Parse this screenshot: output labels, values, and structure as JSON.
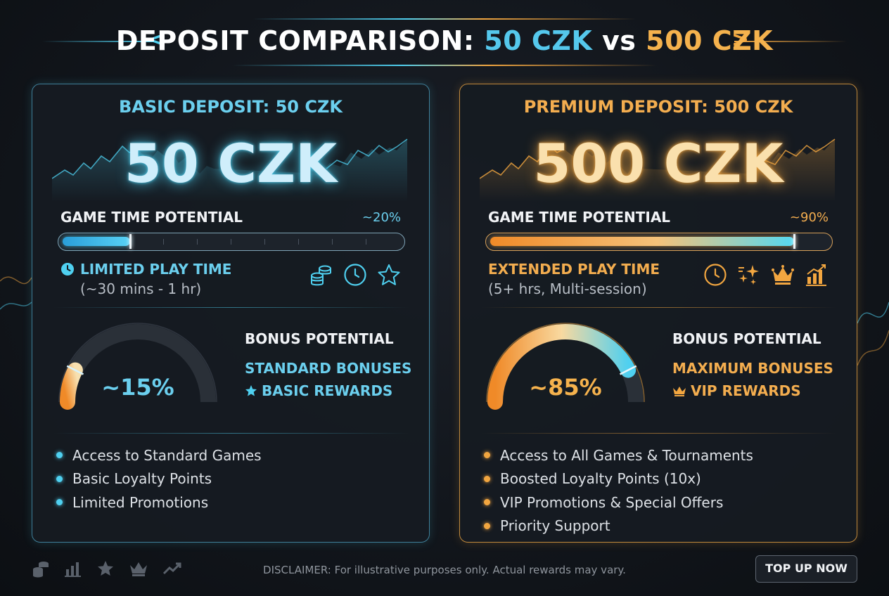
{
  "header": {
    "title_prefix": "DEPOSIT COMPARISON:",
    "title_basic": "50 CZK",
    "title_vs": "vs",
    "title_premium": "500 CZK"
  },
  "colors": {
    "basic_accent": "#4fd0f0",
    "premium_accent": "#f2a640",
    "background": "#12161c"
  },
  "basic": {
    "card_title": "BASIC DEPOSIT: 50 CZK",
    "amount": "50 CZK",
    "game_time_label": "GAME TIME POTENTIAL",
    "game_time_pct": "~20%",
    "game_time_fill": 0.2,
    "play_time_label": "LIMITED PLAY TIME",
    "play_time_sub": "(~30 mins - 1 hr)",
    "play_time_icons": [
      "coins-icon",
      "clock-icon",
      "star-icon"
    ],
    "bonus_gauge_value": "~15%",
    "bonus_gauge_fill": 0.15,
    "bonus_title": "BONUS POTENTIAL",
    "bonus_a": "STANDARD BONUSES",
    "bonus_b": "BASIC REWARDS",
    "features": [
      "Access to Standard Games",
      "Basic Loyalty Points",
      "Limited Promotions"
    ]
  },
  "premium": {
    "card_title": "PREMIUM DEPOSIT: 500 CZK",
    "amount": "500 CZK",
    "game_time_label": "GAME TIME POTENTIAL",
    "game_time_pct": "~90%",
    "game_time_fill": 0.9,
    "play_time_label": "EXTENDED PLAY TIME",
    "play_time_sub": "(5+ hrs, Multi-session)",
    "play_time_icons": [
      "clock-icon",
      "sparkles-icon",
      "crown-icon",
      "bar-chart-icon"
    ],
    "bonus_gauge_value": "~85%",
    "bonus_gauge_fill": 0.85,
    "bonus_title": "BONUS POTENTIAL",
    "bonus_a": "MAXIMUM BONUSES",
    "bonus_b": "VIP REWARDS",
    "features": [
      "Access to All Games & Tournaments",
      "Boosted Loyalty Points (10x)",
      "VIP Promotions & Special Offers",
      "Priority Support"
    ]
  },
  "footer": {
    "icons": [
      "coins-icon",
      "bar-chart-icon",
      "star-icon",
      "crown-icon",
      "trend-up-icon"
    ],
    "disclaimer": "DISCLAIMER: For illustrative purposes only. Actual rewards may vary.",
    "cta_label": "TOP UP NOW"
  }
}
